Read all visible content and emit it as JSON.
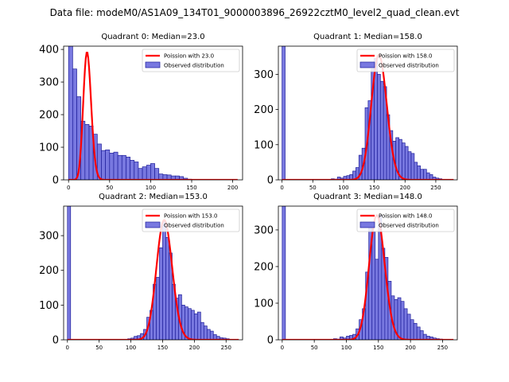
{
  "figure": {
    "suptitle": "Data file: modeM0/AS1A09_134T01_9000003896_26922cztM0_level2_quad_clean.evt"
  },
  "chart_data": [
    {
      "type": "bar",
      "title": "Quadrant 0: Median=23.0",
      "xlim": [
        -6,
        212
      ],
      "ylim": [
        0,
        410
      ],
      "xticks": [
        "0",
        "50",
        "100",
        "150",
        "200"
      ],
      "xtick_values": [
        0,
        50,
        100,
        150,
        200
      ],
      "yticks": [
        "0",
        "100",
        "200",
        "300",
        "400"
      ],
      "ytick_values": [
        0,
        100,
        200,
        300,
        400
      ],
      "bin_width": 5,
      "hist_x": [
        0,
        5,
        10,
        15,
        20,
        25,
        30,
        35,
        40,
        45,
        50,
        55,
        60,
        65,
        70,
        75,
        80,
        85,
        90,
        95,
        100,
        105,
        110,
        115,
        120,
        125,
        130,
        135,
        140,
        145,
        150
      ],
      "hist_values": [
        410,
        340,
        255,
        180,
        170,
        165,
        140,
        110,
        90,
        92,
        82,
        85,
        75,
        75,
        70,
        60,
        55,
        35,
        40,
        45,
        50,
        35,
        18,
        16,
        15,
        12,
        12,
        10,
        5,
        2,
        1
      ],
      "series": [
        {
          "name": "Poission with 23.0",
          "color": "#ff0000",
          "kind": "line",
          "mean": 23.0,
          "peak": 390
        },
        {
          "name": "Observed distribution",
          "color": "#0000cc",
          "kind": "hist"
        }
      ],
      "legend_loc": "top-right"
    },
    {
      "type": "bar",
      "title": "Quadrant 1: Median=158.0",
      "xlim": [
        -6,
        285
      ],
      "ylim": [
        0,
        380
      ],
      "xticks": [
        "0",
        "50",
        "100",
        "150",
        "200",
        "250"
      ],
      "xtick_values": [
        0,
        50,
        100,
        150,
        200,
        250
      ],
      "yticks": [
        "0",
        "100",
        "200",
        "300"
      ],
      "ytick_values": [
        0,
        100,
        200,
        300
      ],
      "bin_width": 5,
      "hist_x": [
        0,
        80,
        85,
        90,
        95,
        100,
        105,
        110,
        115,
        120,
        125,
        130,
        135,
        140,
        145,
        150,
        155,
        160,
        165,
        170,
        175,
        180,
        185,
        190,
        195,
        200,
        205,
        210,
        215,
        220,
        225,
        230,
        235,
        240,
        245,
        250,
        255,
        260
      ],
      "hist_values": [
        380,
        3,
        2,
        8,
        5,
        10,
        12,
        15,
        25,
        35,
        70,
        90,
        205,
        225,
        315,
        345,
        300,
        280,
        265,
        185,
        140,
        110,
        120,
        115,
        105,
        95,
        80,
        75,
        50,
        40,
        30,
        30,
        20,
        15,
        8,
        5,
        3,
        1
      ],
      "series": [
        {
          "name": "Poission with 158.0",
          "color": "#ff0000",
          "kind": "line",
          "mean": 158.0,
          "peak": 355
        },
        {
          "name": "Observed distribution",
          "color": "#0000cc",
          "kind": "hist"
        }
      ],
      "legend_loc": "top-right"
    },
    {
      "type": "bar",
      "title": "Quadrant 2: Median=153.0",
      "xlim": [
        -6,
        276
      ],
      "ylim": [
        0,
        385
      ],
      "xticks": [
        "0",
        "50",
        "100",
        "150",
        "200",
        "250"
      ],
      "xtick_values": [
        0,
        50,
        100,
        150,
        200,
        250
      ],
      "yticks": [
        "0",
        "100",
        "200",
        "300"
      ],
      "ytick_values": [
        0,
        100,
        200,
        300
      ],
      "bin_width": 5,
      "hist_x": [
        0,
        95,
        100,
        105,
        110,
        115,
        120,
        125,
        130,
        135,
        140,
        145,
        150,
        155,
        160,
        165,
        170,
        175,
        180,
        185,
        190,
        195,
        200,
        205,
        210,
        215,
        220,
        225,
        230,
        235,
        240,
        245,
        250,
        255
      ],
      "hist_values": [
        385,
        3,
        5,
        10,
        12,
        18,
        30,
        65,
        85,
        160,
        180,
        265,
        340,
        295,
        250,
        160,
        120,
        130,
        100,
        95,
        90,
        85,
        75,
        80,
        50,
        40,
        30,
        25,
        15,
        10,
        6,
        5,
        3,
        1
      ],
      "series": [
        {
          "name": "Poission with 153.0",
          "color": "#ff0000",
          "kind": "line",
          "mean": 153.0,
          "peak": 345
        },
        {
          "name": "Observed distribution",
          "color": "#0000cc",
          "kind": "hist"
        }
      ],
      "legend_loc": "top-right"
    },
    {
      "type": "bar",
      "title": "Quadrant 3: Median=148.0",
      "xlim": [
        -6,
        273
      ],
      "ylim": [
        0,
        365
      ],
      "xticks": [
        "0",
        "50",
        "100",
        "150",
        "200",
        "250"
      ],
      "xtick_values": [
        0,
        50,
        100,
        150,
        200,
        250
      ],
      "yticks": [
        "0",
        "100",
        "200",
        "300"
      ],
      "ytick_values": [
        0,
        100,
        200,
        300
      ],
      "bin_width": 5,
      "hist_x": [
        0,
        80,
        85,
        90,
        95,
        100,
        105,
        110,
        115,
        120,
        125,
        130,
        135,
        140,
        145,
        150,
        155,
        160,
        165,
        170,
        175,
        180,
        185,
        190,
        195,
        200,
        205,
        210,
        215,
        220,
        225,
        230,
        235,
        240,
        245,
        250
      ],
      "hist_values": [
        365,
        3,
        2,
        8,
        5,
        10,
        12,
        15,
        30,
        55,
        85,
        185,
        320,
        295,
        220,
        340,
        250,
        225,
        160,
        120,
        110,
        115,
        105,
        85,
        70,
        55,
        45,
        35,
        25,
        15,
        10,
        8,
        5,
        3,
        2,
        1
      ],
      "series": [
        {
          "name": "Poission with 148.0",
          "color": "#ff0000",
          "kind": "line",
          "mean": 148.0,
          "peak": 340
        },
        {
          "name": "Observed distribution",
          "color": "#0000cc",
          "kind": "hist"
        }
      ],
      "legend_loc": "top-right"
    }
  ]
}
